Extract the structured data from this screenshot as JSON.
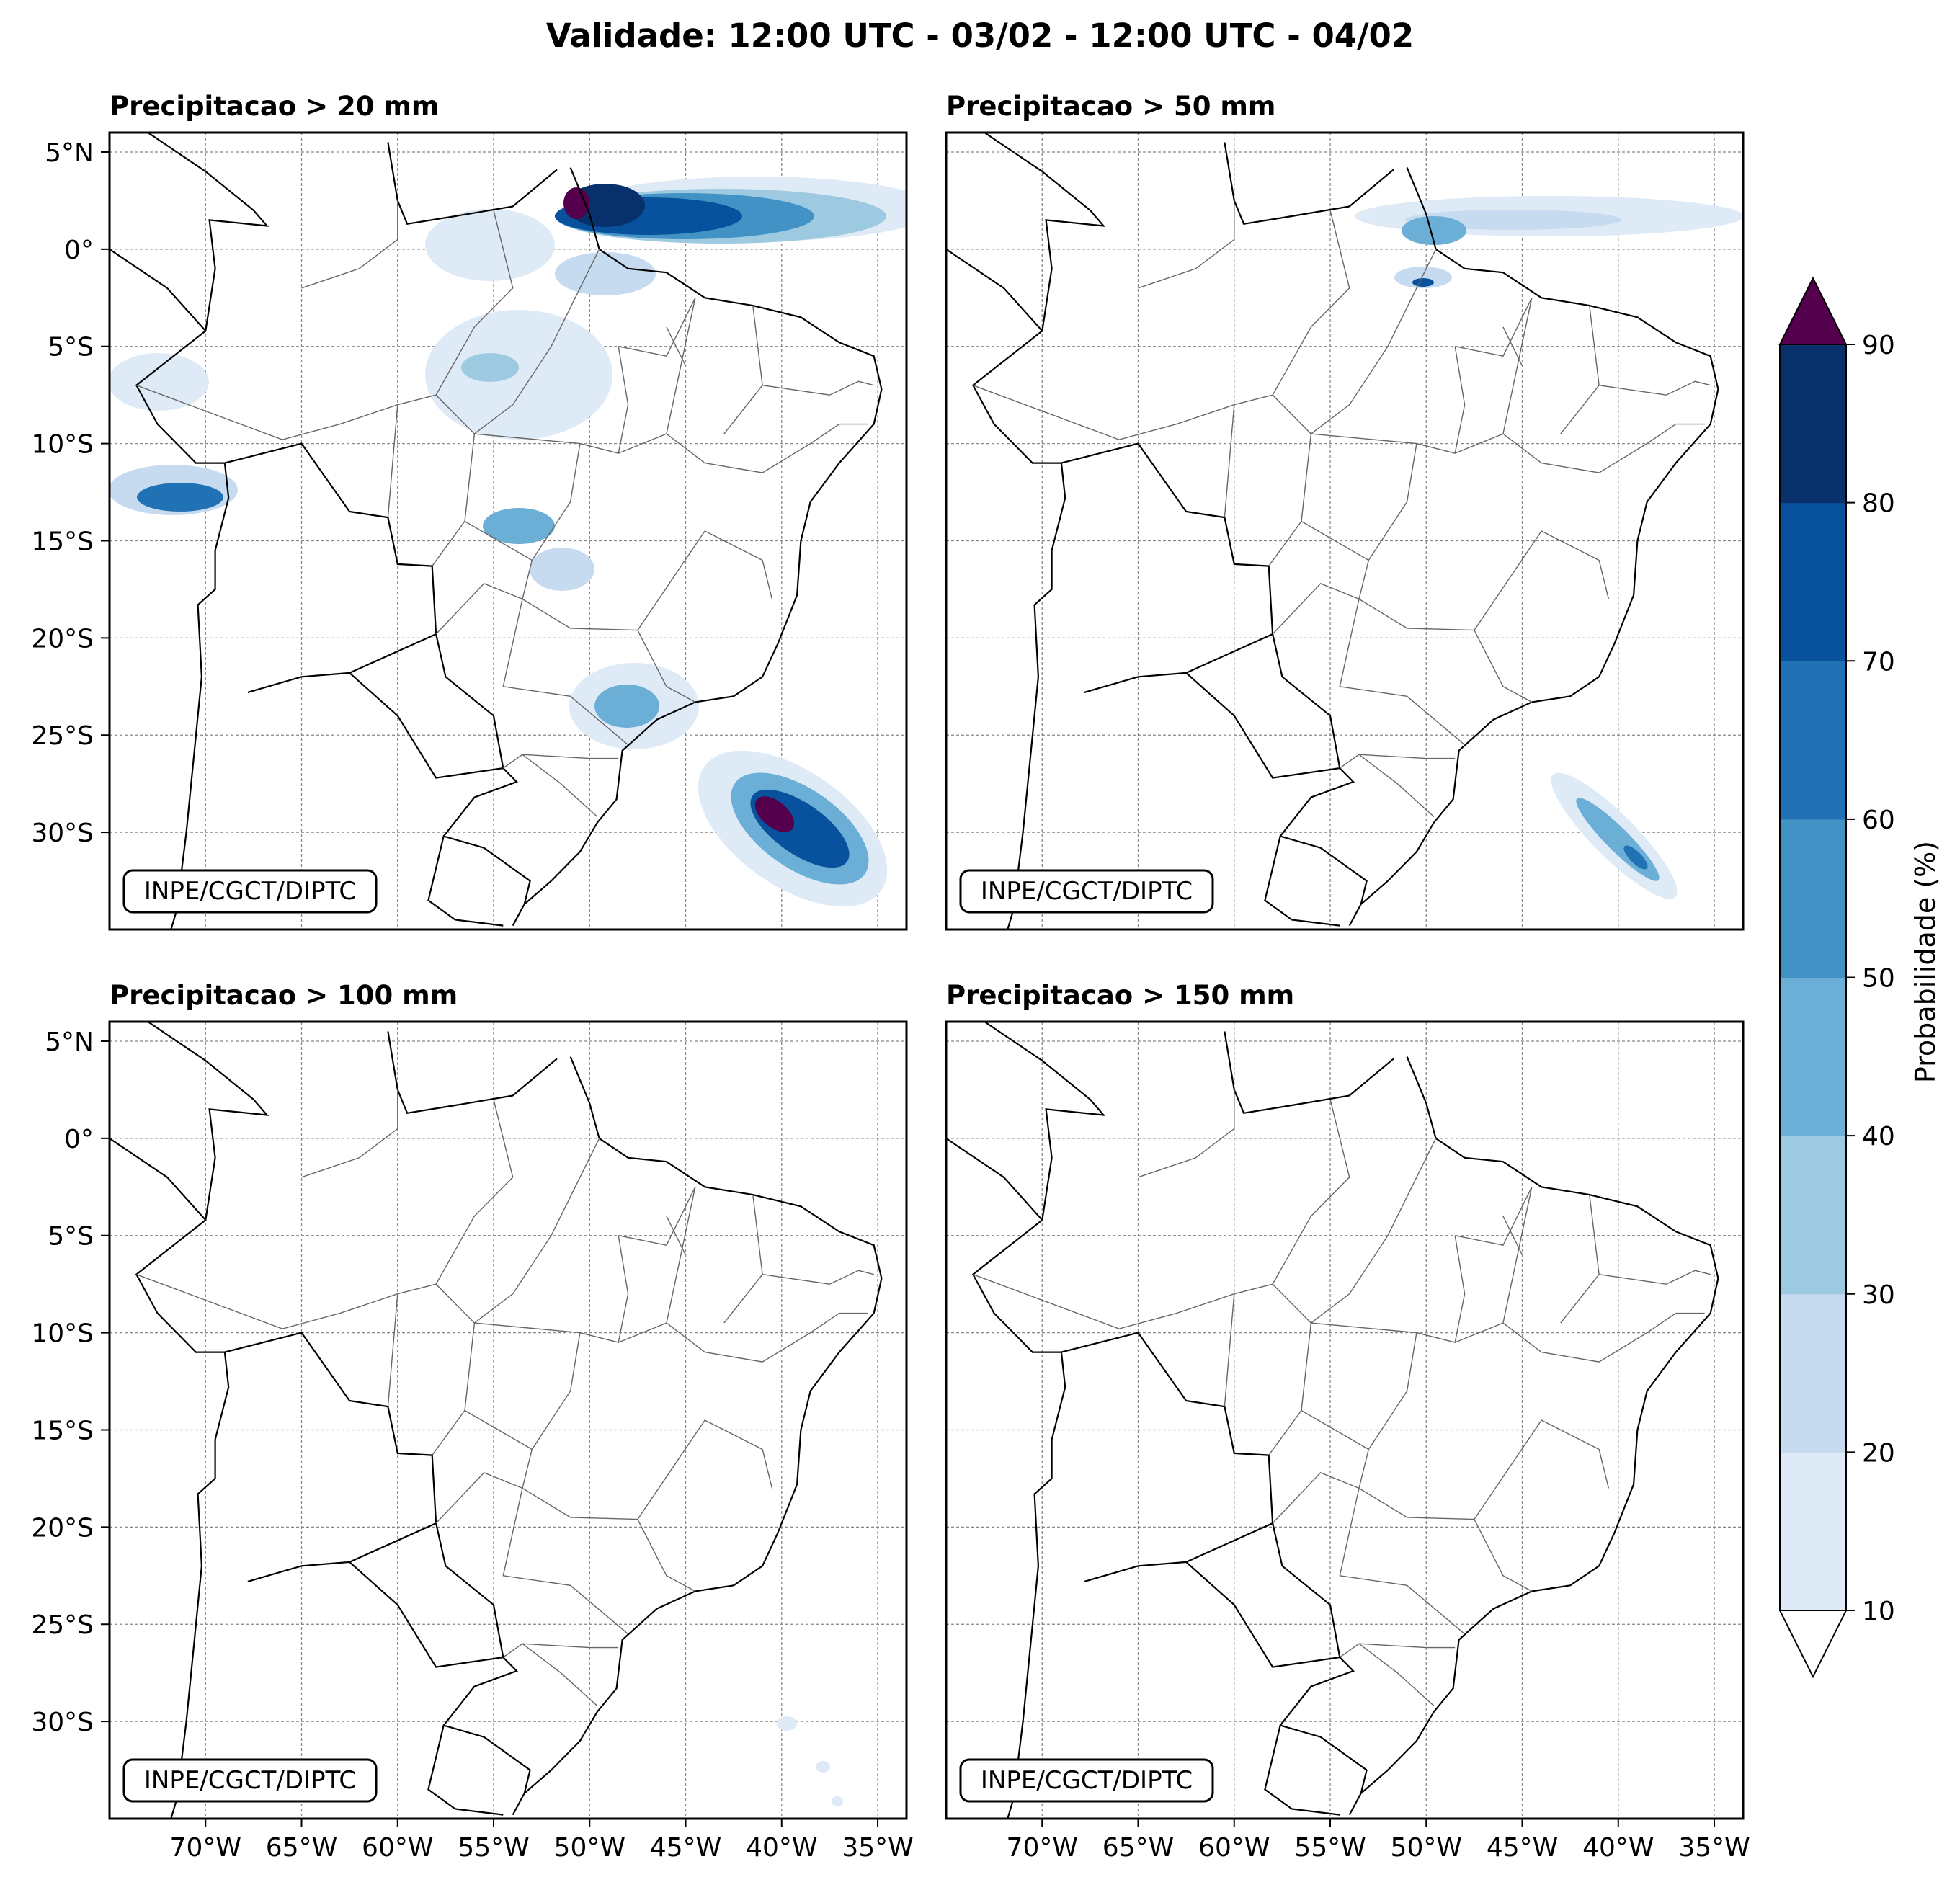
{
  "figure": {
    "title": "Validade: 12:00 UTC - 03/02 - 12:00 UTC - 04/02"
  },
  "axes": {
    "lon_ticks": [
      "70°W",
      "65°W",
      "60°W",
      "55°W",
      "50°W",
      "45°W",
      "40°W",
      "35°W"
    ],
    "lat_ticks": [
      "5°N",
      "0°",
      "5°S",
      "10°S",
      "15°S",
      "20°S",
      "25°S",
      "30°S"
    ]
  },
  "panels": [
    {
      "title": "Precipitacao > 20 mm",
      "credit": "INPE/CGCT/DIPTC"
    },
    {
      "title": "Precipitacao > 50 mm",
      "credit": "INPE/CGCT/DIPTC"
    },
    {
      "title": "Precipitacao > 100 mm",
      "credit": "INPE/CGCT/DIPTC"
    },
    {
      "title": "Precipitacao > 150 mm",
      "credit": "INPE/CGCT/DIPTC"
    }
  ],
  "colorbar": {
    "label": "Probabilidade (%)",
    "levels": [
      "10",
      "20",
      "30",
      "40",
      "50",
      "60",
      "70",
      "80",
      "90"
    ],
    "colors": [
      "#deebf7",
      "#c6dbef",
      "#9ecae1",
      "#6baed6",
      "#4292c6",
      "#2171b5",
      "#08519c",
      "#08306b"
    ],
    "over_color": "#54004d",
    "under_color": "#ffffff"
  }
}
